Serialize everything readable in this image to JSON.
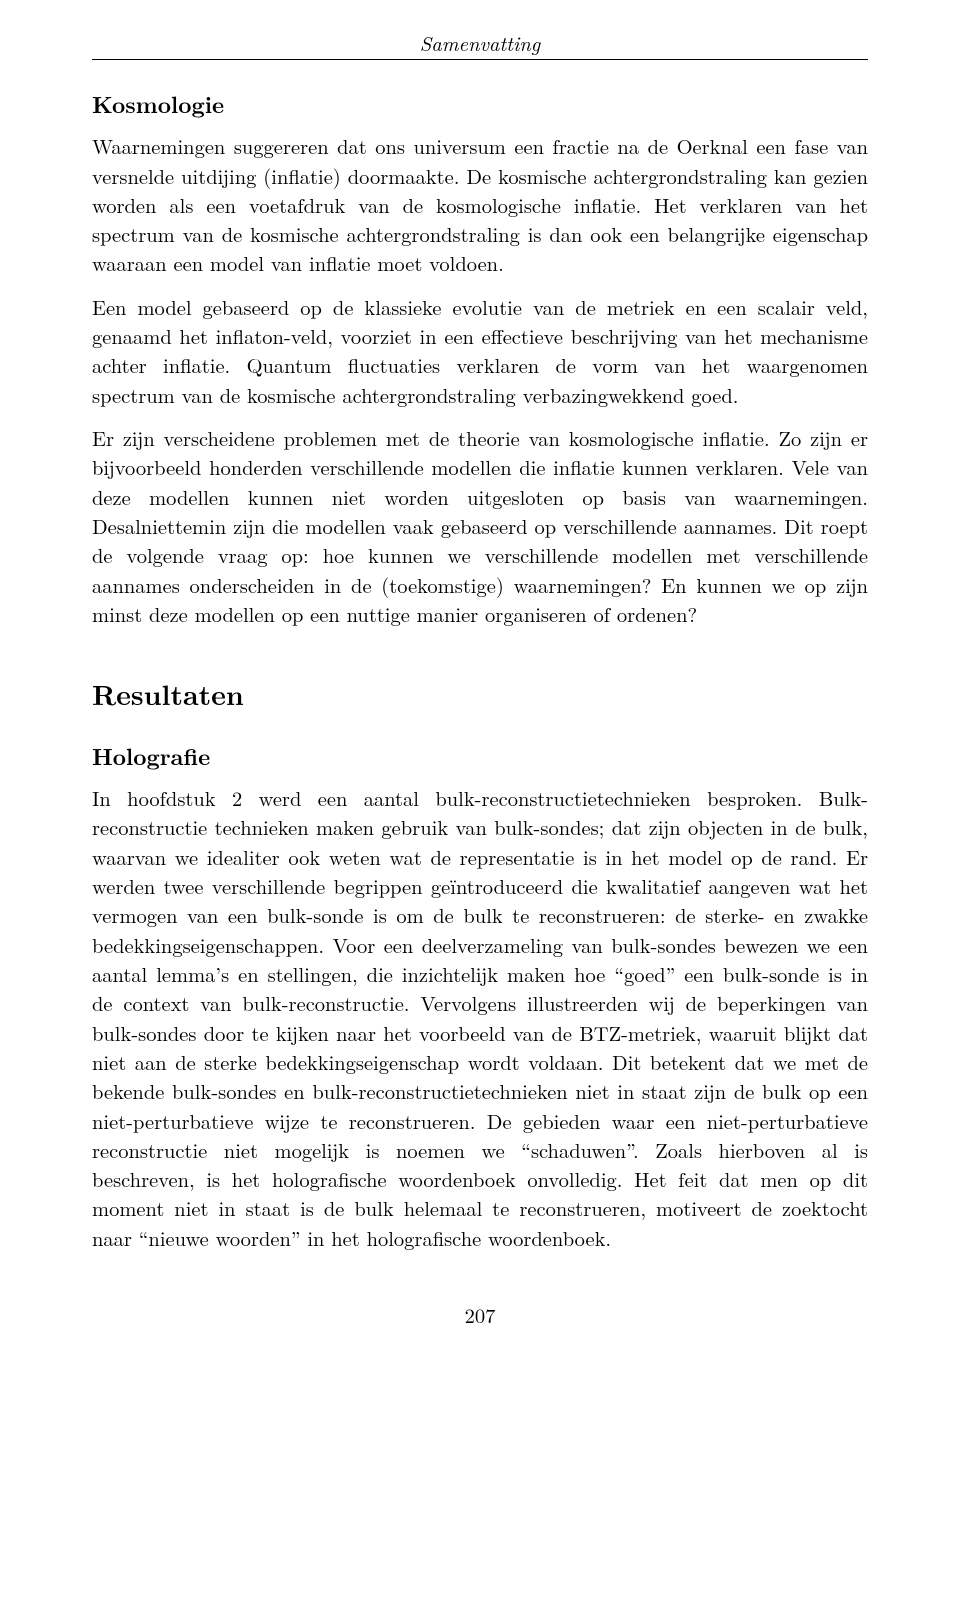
{
  "running_head": "Samenvatting",
  "section1": {
    "heading": "Kosmologie",
    "p1": "Waarnemingen suggereren dat ons universum een fractie na de Oerknal een fase van versnelde uitdijing (inflatie) doormaakte. De kosmische achtergrondstraling kan gezien worden als een voetafdruk van de kosmologische inflatie. Het verklaren van het spectrum van de kosmische achtergrondstraling is dan ook een belangrijke eigenschap waaraan een model van inflatie moet voldoen.",
    "p2": "Een model gebaseerd op de klassieke evolutie van de metriek en een scalair veld, genaamd het inflaton-veld, voorziet in een effectieve beschrijving van het mecha­nisme achter inflatie. Quantum fluctuaties verklaren de vorm van het waargeno­men spectrum van de kosmische achtergrondstraling verbazingwekkend goed.",
    "p3": "Er zijn verscheidene problemen met de theorie van kosmologische inflatie. Zo zijn er bijvoorbeeld honderden verschillende modellen die inflatie kunnen verklaren. Vele van deze modellen kunnen niet worden uitgesloten op basis van waarnemin­gen. Desalniettemin zijn die modellen vaak gebaseerd op verschillende aannames. Dit roept de volgende vraag op: hoe kunnen we verschillende modellen met ver­schillende aannames onderscheiden in de (toekomstige) waarnemingen? En kunnen we op zijn minst deze modellen op een nuttige manier organiseren of ordenen?"
  },
  "section2": {
    "heading": "Resultaten",
    "sub": {
      "heading": "Holografie",
      "p1": "In hoofdstuk 2 werd een aantal bulk-reconstructietechnieken besproken. Bulk-reconstructie technieken maken gebruik van bulk-sondes; dat zijn objecten in de bulk, waarvan we idealiter ook weten wat de representatie is in het model op de rand. Er werden twee verschillende begrippen geïntroduceerd die kwalitatief aangeven wat het vermogen van een bulk-sonde is om de bulk te reconstrueren: de sterke- en zwakke bedekkingseigenschappen. Voor een deelverzameling van bulk-sondes bewezen we een aantal lemma’s en stellingen, die inzichtelijk maken hoe “goed” een bulk-sonde is in de context van bulk-reconstructie. Vervolgens illustreerden wij de beperkingen van bulk-sondes door te kijken naar het voor­beeld van de BTZ-metriek, waaruit blijkt dat niet aan de sterke bedekkingsei­genschap wordt voldaan. Dit betekent dat we met de bekende bulk-sondes en bulk-reconstructietechnieken niet in staat zijn de bulk op een niet-perturbatieve wijze te reconstrueren. De gebieden waar een niet-perturbatieve reconstructie niet mogelijk is noemen we “schaduwen”. Zoals hierboven al is beschreven, is het holo­grafische woordenboek onvolledig. Het feit dat men op dit moment niet in staat is de bulk helemaal te reconstrueren, motiveert de zoektocht naar “nieuwe woorden” in het holografische woordenboek."
    }
  },
  "page_number": "207"
}
